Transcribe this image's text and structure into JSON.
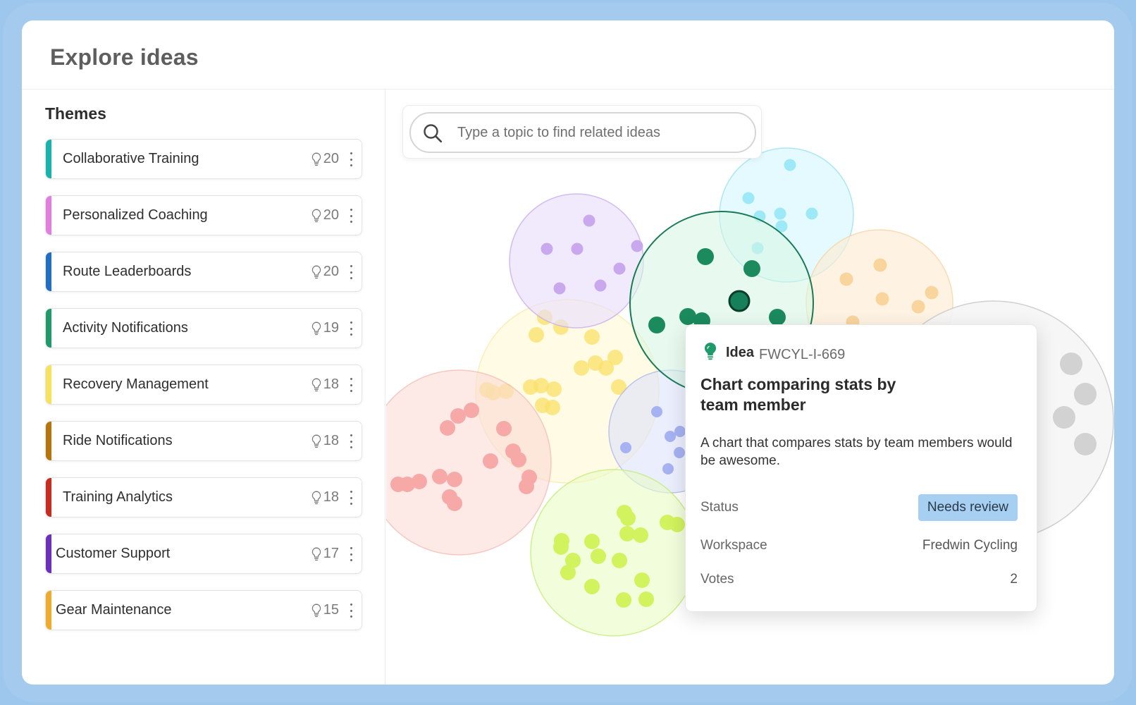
{
  "header": {
    "title": "Explore ideas"
  },
  "sidebar": {
    "heading": "Themes",
    "themes": [
      {
        "label": "Collaborative Training",
        "count": "20",
        "color": "#17b3ad"
      },
      {
        "label": "Personalized Coaching",
        "count": "20",
        "color": "#e57de0"
      },
      {
        "label": "Route Leaderboards",
        "count": "20",
        "color": "#1f6fc8"
      },
      {
        "label": "Activity Notifications",
        "count": "19",
        "color": "#1f9a6a"
      },
      {
        "label": "Recovery Management",
        "count": "18",
        "color": "#f7e35a"
      },
      {
        "label": "Ride Notifications",
        "count": "18",
        "color": "#b7740a"
      },
      {
        "label": "Training Analytics",
        "count": "18",
        "color": "#cc2a1f"
      },
      {
        "label": "Customer Support",
        "count": "17",
        "color": "#6c2fc0"
      },
      {
        "label": "Gear Maintenance",
        "count": "15",
        "color": "#f2aa2a"
      }
    ]
  },
  "search": {
    "placeholder": "Type a topic to find related ideas"
  },
  "popover": {
    "type": "Idea",
    "id": "FWCYL-I-669",
    "title": "Chart comparing stats by team member",
    "description": "A chart that compares stats by team members would be awesome.",
    "status_label": "Status",
    "status_value": "Needs review",
    "workspace_label": "Workspace",
    "workspace_value": "Fredwin Cycling",
    "votes_label": "Votes",
    "votes_value": "2"
  },
  "colors": {
    "accent": "#a7cff2",
    "idea_icon": "#1f9a6a"
  }
}
